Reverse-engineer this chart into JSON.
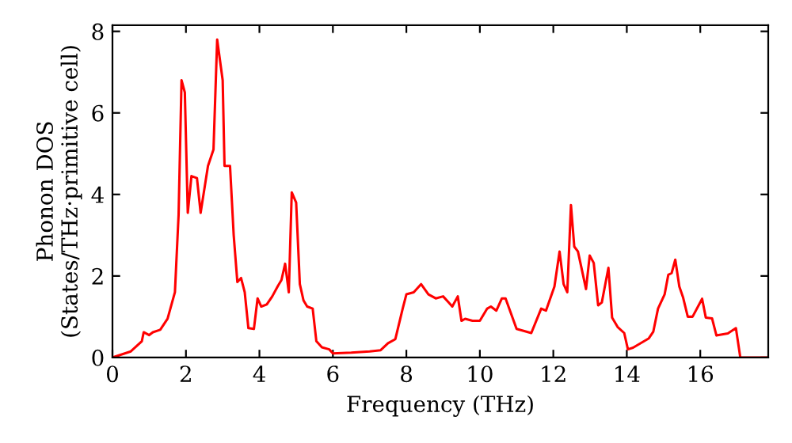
{
  "chart_data": {
    "type": "line",
    "xlabel": "Frequency (THz)",
    "ylabel": "Phonon DOS\n(States/THz·primitive cell)",
    "series": [
      {
        "color": "#ff0000",
        "x": [
          0,
          0.5,
          0.8,
          0.85,
          1.0,
          1.1,
          1.3,
          1.5,
          1.7,
          1.8,
          1.88,
          1.97,
          2.05,
          2.15,
          2.3,
          2.4,
          2.6,
          2.75,
          2.85,
          3.0,
          3.05,
          3.2,
          3.3,
          3.4,
          3.5,
          3.6,
          3.7,
          3.85,
          3.95,
          4.05,
          4.2,
          4.35,
          4.5,
          4.6,
          4.7,
          4.8,
          4.88,
          5.0,
          5.1,
          5.2,
          5.3,
          5.45,
          5.55,
          5.7,
          5.9,
          6.0,
          6.5,
          7.0,
          7.3,
          7.5,
          7.7,
          7.9,
          8.0,
          8.2,
          8.4,
          8.6,
          8.8,
          9.0,
          9.15,
          9.25,
          9.4,
          9.5,
          9.6,
          9.8,
          10.0,
          10.2,
          10.3,
          10.45,
          10.6,
          10.7,
          11.0,
          11.4,
          11.67,
          11.8,
          12.03,
          12.17,
          12.28,
          12.38,
          12.48,
          12.57,
          12.67,
          12.89,
          12.99,
          13.1,
          13.22,
          13.32,
          13.5,
          13.6,
          13.75,
          13.93,
          14.03,
          14.17,
          14.6,
          14.72,
          14.85,
          15.03,
          15.13,
          15.22,
          15.32,
          15.43,
          15.53,
          15.66,
          15.79,
          16.05,
          16.15,
          16.32,
          16.44,
          16.75,
          16.97,
          17.09,
          17.84
        ],
        "values": [
          0,
          0.15,
          0.4,
          0.62,
          0.55,
          0.62,
          0.68,
          0.95,
          1.6,
          3.5,
          6.8,
          6.5,
          3.55,
          4.45,
          4.4,
          3.55,
          4.7,
          5.1,
          7.8,
          6.8,
          4.7,
          4.7,
          3.0,
          1.85,
          1.95,
          1.6,
          0.72,
          0.7,
          1.45,
          1.25,
          1.3,
          1.5,
          1.75,
          1.9,
          2.3,
          1.6,
          4.05,
          3.8,
          1.8,
          1.4,
          1.25,
          1.2,
          0.4,
          0.25,
          0.2,
          0.1,
          0.12,
          0.15,
          0.18,
          0.35,
          0.45,
          1.2,
          1.55,
          1.6,
          1.8,
          1.55,
          1.45,
          1.5,
          1.35,
          1.25,
          1.5,
          0.9,
          0.95,
          0.9,
          0.9,
          1.2,
          1.25,
          1.15,
          1.45,
          1.45,
          0.7,
          0.6,
          1.2,
          1.15,
          1.74,
          2.6,
          1.8,
          1.6,
          3.74,
          2.72,
          2.6,
          1.68,
          2.5,
          2.32,
          1.28,
          1.35,
          2.2,
          0.98,
          0.75,
          0.6,
          0.2,
          0.24,
          0.47,
          0.63,
          1.2,
          1.55,
          2.03,
          2.07,
          2.4,
          1.74,
          1.48,
          1.0,
          1.0,
          1.44,
          0.98,
          0.96,
          0.54,
          0.59,
          0.72,
          0,
          0
        ]
      }
    ],
    "xlim": [
      0,
      17.85
    ],
    "ylim": [
      0,
      8.15
    ],
    "xticks": [
      0,
      2,
      4,
      6,
      8,
      10,
      12,
      14,
      16
    ],
    "yticks": [
      0,
      2,
      4,
      6,
      8
    ],
    "grid": false,
    "legend": false
  }
}
